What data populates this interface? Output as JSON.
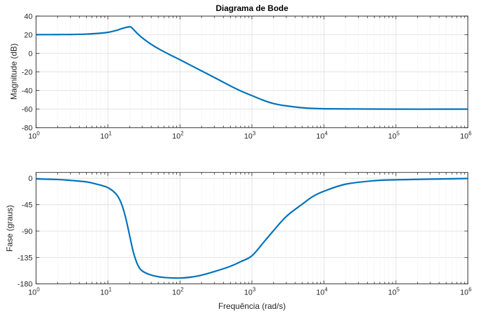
{
  "chart_data": [
    {
      "type": "line",
      "title": "Diagrama de Bode",
      "xlabel": "",
      "ylabel": "Magnitude (dB)",
      "xscale": "log",
      "xlim": [
        1,
        1000000
      ],
      "ylim": [
        -80,
        40
      ],
      "xticks": [
        {
          "base": "10",
          "exp": "0"
        },
        {
          "base": "10",
          "exp": "1"
        },
        {
          "base": "10",
          "exp": "2"
        },
        {
          "base": "10",
          "exp": "3"
        },
        {
          "base": "10",
          "exp": "4"
        },
        {
          "base": "10",
          "exp": "5"
        },
        {
          "base": "10",
          "exp": "6"
        }
      ],
      "yticks": [
        "40",
        "20",
        "0",
        "-20",
        "-40",
        "-60",
        "-80"
      ],
      "ytick_values": [
        40,
        20,
        0,
        -20,
        -40,
        -60,
        -80
      ],
      "grid": true,
      "color": "#0072BD",
      "x": [
        1,
        2,
        3,
        5,
        7,
        10,
        13,
        16,
        19,
        21,
        25,
        30,
        40,
        50,
        70,
        100,
        200,
        300,
        500,
        700,
        1000,
        1500,
        2000,
        3000,
        5000,
        10000,
        100000,
        1000000
      ],
      "y": [
        20,
        20.1,
        20.2,
        20.6,
        21.3,
        22.5,
        24.5,
        26.8,
        28.2,
        28,
        22,
        16.5,
        9.5,
        5,
        -1,
        -7,
        -19,
        -26,
        -35,
        -40.5,
        -45.5,
        -51,
        -54,
        -56.5,
        -58.5,
        -59.6,
        -60,
        -60
      ]
    },
    {
      "type": "line",
      "title": "",
      "xlabel": "Frequência (rad/s)",
      "ylabel": "Fase (graus)",
      "xscale": "log",
      "xlim": [
        1,
        1000000
      ],
      "ylim": [
        -180,
        10
      ],
      "xticks": [
        {
          "base": "10",
          "exp": "0"
        },
        {
          "base": "10",
          "exp": "1"
        },
        {
          "base": "10",
          "exp": "2"
        },
        {
          "base": "10",
          "exp": "3"
        },
        {
          "base": "10",
          "exp": "4"
        },
        {
          "base": "10",
          "exp": "5"
        },
        {
          "base": "10",
          "exp": "6"
        }
      ],
      "yticks": [
        "0",
        "-45",
        "-90",
        "-135",
        "-180"
      ],
      "ytick_values": [
        0,
        -45,
        -90,
        -135,
        -180
      ],
      "grid": true,
      "color": "#0072BD",
      "x": [
        1,
        2,
        3,
        5,
        7,
        10,
        13,
        15,
        17,
        19,
        21,
        23,
        26,
        30,
        40,
        60,
        100,
        150,
        200,
        300,
        500,
        700,
        1000,
        1500,
        2000,
        3000,
        5000,
        7000,
        10000,
        20000,
        50000,
        100000,
        1000000
      ],
      "y": [
        -1,
        -2,
        -3.5,
        -6,
        -10,
        -16,
        -27,
        -40,
        -60,
        -85,
        -110,
        -130,
        -148,
        -158,
        -165,
        -169,
        -170,
        -168,
        -165,
        -159,
        -150,
        -142,
        -132,
        -107,
        -89,
        -65,
        -44,
        -31,
        -22,
        -10,
        -4,
        -2.5,
        -0.3
      ]
    }
  ]
}
